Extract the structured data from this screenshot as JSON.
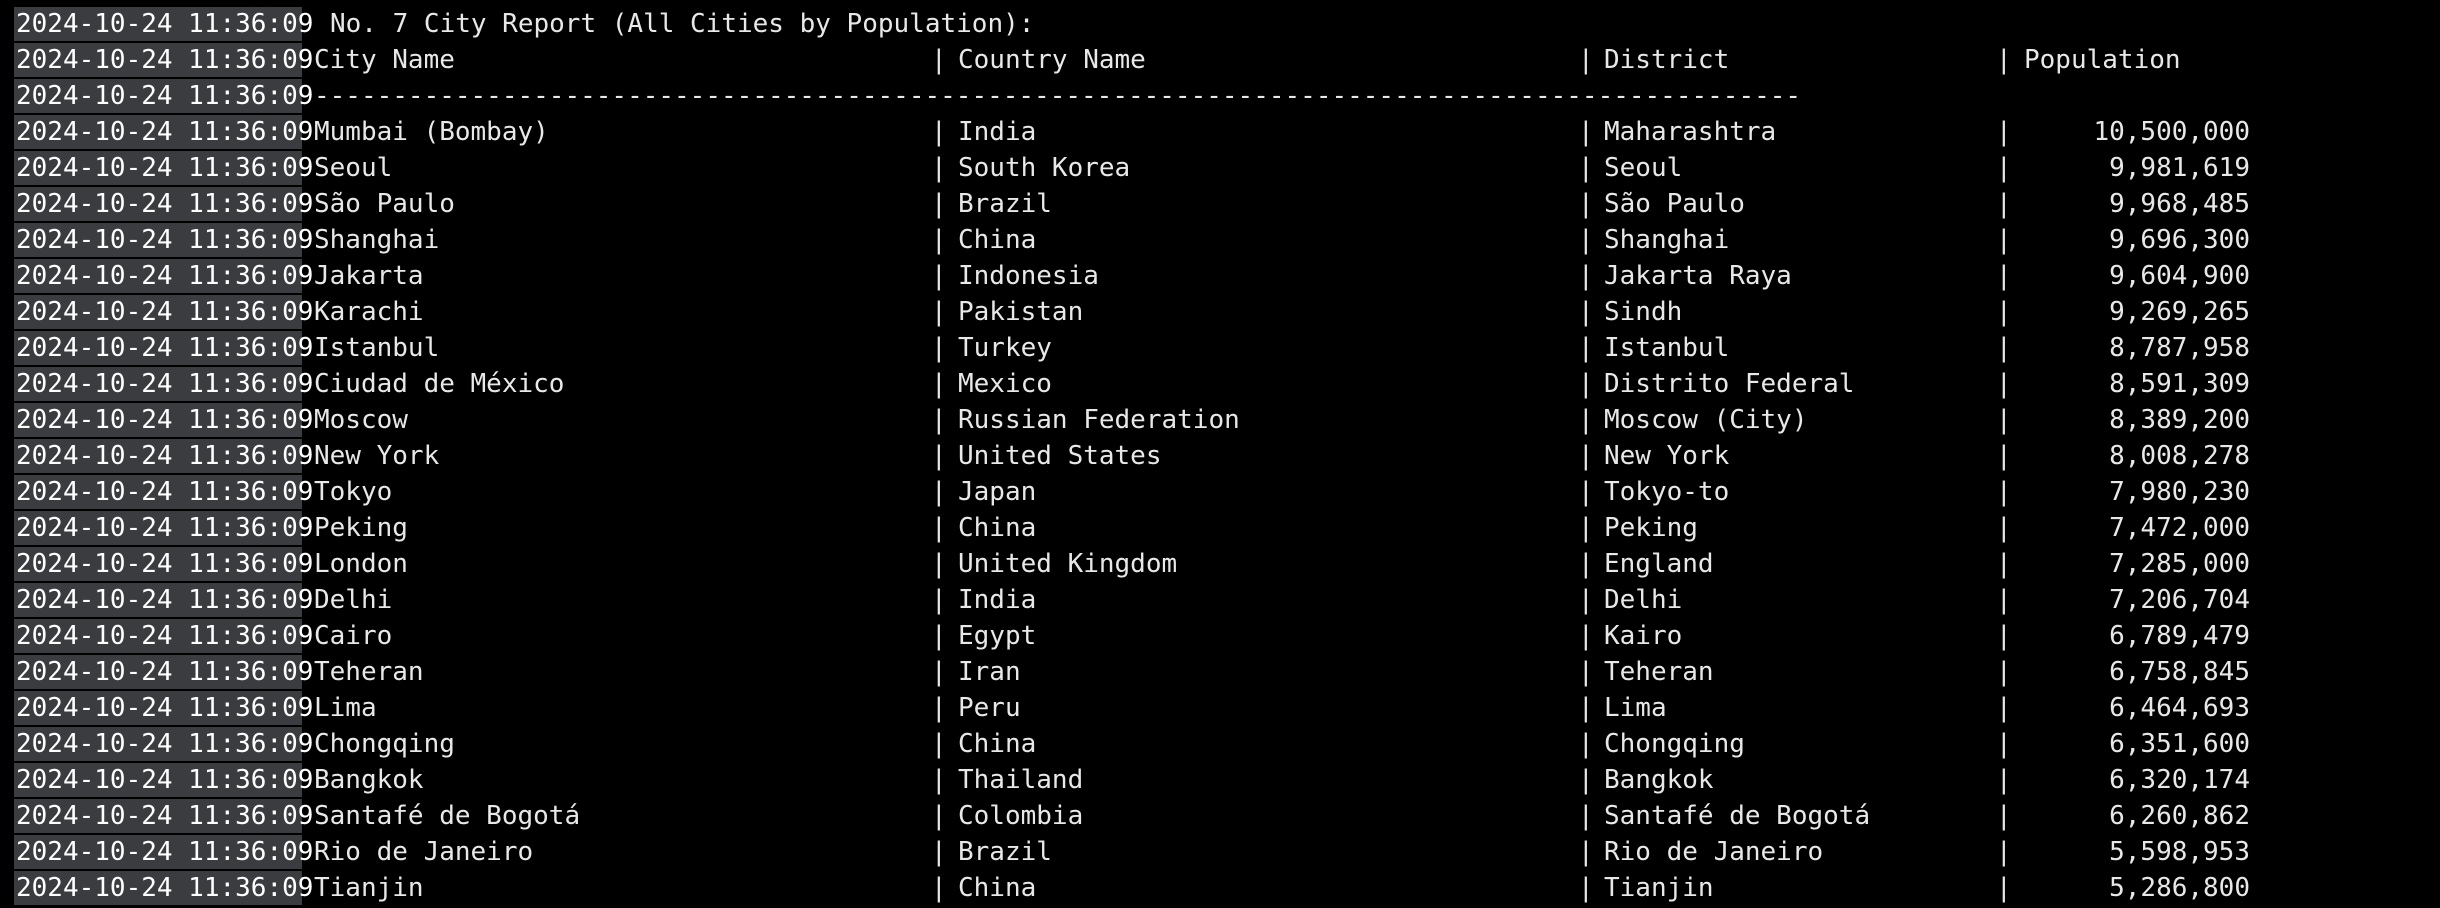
{
  "title_line": {
    "timestamp": "2024-10-24 11:36:09",
    "text": "No. 7 City Report (All Cities by Population):"
  },
  "header": {
    "timestamp": "2024-10-24 11:36:09",
    "city": "City Name",
    "country": "Country Name",
    "district": "District",
    "population": "Population",
    "separator": "|"
  },
  "rule_line": {
    "timestamp": "2024-10-24 11:36:09",
    "text": "-----------------------------------------------------------------------------------------------"
  },
  "rows": [
    {
      "timestamp": "2024-10-24 11:36:09",
      "city": "Mumbai (Bombay)",
      "country": "India",
      "district": "Maharashtra",
      "population": "10,500,000"
    },
    {
      "timestamp": "2024-10-24 11:36:09",
      "city": "Seoul",
      "country": "South Korea",
      "district": "Seoul",
      "population": "9,981,619"
    },
    {
      "timestamp": "2024-10-24 11:36:09",
      "city": "São Paulo",
      "country": "Brazil",
      "district": "São Paulo",
      "population": "9,968,485"
    },
    {
      "timestamp": "2024-10-24 11:36:09",
      "city": "Shanghai",
      "country": "China",
      "district": "Shanghai",
      "population": "9,696,300"
    },
    {
      "timestamp": "2024-10-24 11:36:09",
      "city": "Jakarta",
      "country": "Indonesia",
      "district": "Jakarta Raya",
      "population": "9,604,900"
    },
    {
      "timestamp": "2024-10-24 11:36:09",
      "city": "Karachi",
      "country": "Pakistan",
      "district": "Sindh",
      "population": "9,269,265"
    },
    {
      "timestamp": "2024-10-24 11:36:09",
      "city": "Istanbul",
      "country": "Turkey",
      "district": "Istanbul",
      "population": "8,787,958"
    },
    {
      "timestamp": "2024-10-24 11:36:09",
      "city": "Ciudad de México",
      "country": "Mexico",
      "district": "Distrito Federal",
      "population": "8,591,309"
    },
    {
      "timestamp": "2024-10-24 11:36:09",
      "city": "Moscow",
      "country": "Russian Federation",
      "district": "Moscow (City)",
      "population": "8,389,200"
    },
    {
      "timestamp": "2024-10-24 11:36:09",
      "city": "New York",
      "country": "United States",
      "district": "New York",
      "population": "8,008,278"
    },
    {
      "timestamp": "2024-10-24 11:36:09",
      "city": "Tokyo",
      "country": "Japan",
      "district": "Tokyo-to",
      "population": "7,980,230"
    },
    {
      "timestamp": "2024-10-24 11:36:09",
      "city": "Peking",
      "country": "China",
      "district": "Peking",
      "population": "7,472,000"
    },
    {
      "timestamp": "2024-10-24 11:36:09",
      "city": "London",
      "country": "United Kingdom",
      "district": "England",
      "population": "7,285,000"
    },
    {
      "timestamp": "2024-10-24 11:36:09",
      "city": "Delhi",
      "country": "India",
      "district": "Delhi",
      "population": "7,206,704"
    },
    {
      "timestamp": "2024-10-24 11:36:09",
      "city": "Cairo",
      "country": "Egypt",
      "district": "Kairo",
      "population": "6,789,479"
    },
    {
      "timestamp": "2024-10-24 11:36:09",
      "city": "Teheran",
      "country": "Iran",
      "district": "Teheran",
      "population": "6,758,845"
    },
    {
      "timestamp": "2024-10-24 11:36:09",
      "city": "Lima",
      "country": "Peru",
      "district": "Lima",
      "population": "6,464,693"
    },
    {
      "timestamp": "2024-10-24 11:36:09",
      "city": "Chongqing",
      "country": "China",
      "district": "Chongqing",
      "population": "6,351,600"
    },
    {
      "timestamp": "2024-10-24 11:36:09",
      "city": "Bangkok",
      "country": "Thailand",
      "district": "Bangkok",
      "population": "6,320,174"
    },
    {
      "timestamp": "2024-10-24 11:36:09",
      "city": "Santafé de Bogotá",
      "country": "Colombia",
      "district": "Santafé de Bogotá",
      "population": "6,260,862"
    },
    {
      "timestamp": "2024-10-24 11:36:09",
      "city": "Rio de Janeiro",
      "country": "Brazil",
      "district": "Rio de Janeiro",
      "population": "5,598,953"
    },
    {
      "timestamp": "2024-10-24 11:36:09",
      "city": "Tianjin",
      "country": "China",
      "district": "Tianjin",
      "population": "5,286,800"
    }
  ],
  "colors": {
    "background": "#000000",
    "text": "#e8e8e8",
    "timestamp_highlight": "#3a3c40"
  }
}
